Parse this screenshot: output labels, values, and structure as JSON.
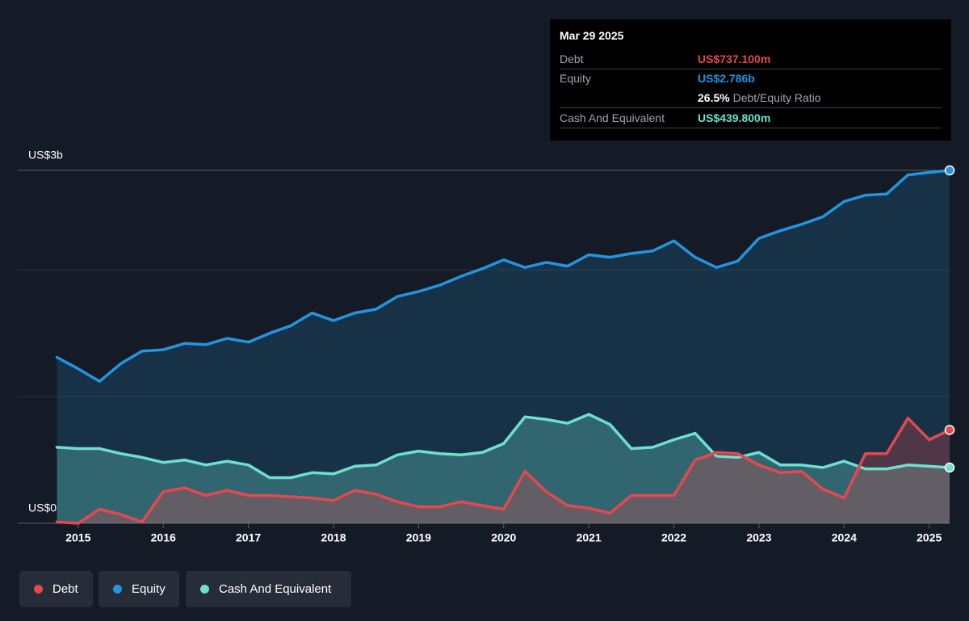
{
  "chart_data": {
    "type": "area-line",
    "x": [
      2014.75,
      2015.0,
      2015.25,
      2015.5,
      2015.75,
      2016.0,
      2016.25,
      2016.5,
      2016.75,
      2017.0,
      2017.25,
      2017.5,
      2017.75,
      2018.0,
      2018.25,
      2018.5,
      2018.75,
      2019.0,
      2019.25,
      2019.5,
      2019.75,
      2020.0,
      2020.25,
      2020.5,
      2020.75,
      2021.0,
      2021.25,
      2021.5,
      2021.75,
      2022.0,
      2022.25,
      2022.5,
      2022.75,
      2023.0,
      2023.25,
      2023.5,
      2023.75,
      2024.0,
      2024.25,
      2024.5,
      2024.75,
      2025.0,
      2025.24
    ],
    "series": [
      {
        "name": "Debt",
        "color": "#e5484d",
        "values": [
          0.01,
          0.0,
          0.11,
          0.07,
          0.01,
          0.25,
          0.28,
          0.22,
          0.26,
          0.22,
          0.22,
          0.21,
          0.2,
          0.18,
          0.26,
          0.23,
          0.17,
          0.13,
          0.13,
          0.17,
          0.14,
          0.11,
          0.41,
          0.25,
          0.14,
          0.12,
          0.08,
          0.22,
          0.22,
          0.22,
          0.5,
          0.56,
          0.55,
          0.46,
          0.4,
          0.41,
          0.27,
          0.2,
          0.55,
          0.55,
          0.83,
          0.66,
          0.7371
        ]
      },
      {
        "name": "Equity",
        "color": "#2394df",
        "values": [
          1.31,
          1.22,
          1.12,
          1.26,
          1.36,
          1.37,
          1.42,
          1.41,
          1.46,
          1.43,
          1.5,
          1.56,
          1.66,
          1.6,
          1.66,
          1.69,
          1.79,
          1.83,
          1.88,
          1.95,
          2.01,
          2.08,
          2.02,
          2.06,
          2.03,
          2.12,
          2.1,
          2.13,
          2.15,
          2.23,
          2.1,
          2.02,
          2.07,
          2.25,
          2.31,
          2.36,
          2.42,
          2.54,
          2.59,
          2.6,
          2.75,
          2.77,
          2.786
        ]
      },
      {
        "name": "Cash And Equivalent",
        "color": "#6de0d0",
        "values": [
          0.6,
          0.59,
          0.59,
          0.55,
          0.52,
          0.48,
          0.5,
          0.46,
          0.49,
          0.46,
          0.36,
          0.36,
          0.4,
          0.39,
          0.45,
          0.46,
          0.54,
          0.57,
          0.55,
          0.54,
          0.56,
          0.63,
          0.84,
          0.82,
          0.79,
          0.86,
          0.78,
          0.59,
          0.6,
          0.66,
          0.71,
          0.53,
          0.52,
          0.56,
          0.46,
          0.46,
          0.44,
          0.49,
          0.43,
          0.43,
          0.46,
          0.45,
          0.4398
        ]
      }
    ],
    "xlim": [
      2014.29,
      2025.24
    ],
    "xticks": [
      2015,
      2016,
      2017,
      2018,
      2019,
      2020,
      2021,
      2022,
      2023,
      2024,
      2025
    ],
    "ylim": [
      0,
      2.786
    ],
    "yticks": [
      {
        "value": 0,
        "label": "US$0"
      },
      {
        "value": 1,
        "label": null
      },
      {
        "value": 2,
        "label": null
      },
      {
        "value": 2.786,
        "label": "US$3b"
      }
    ],
    "grid": true,
    "tooltip": {
      "date": "Mar 29 2025",
      "debt_label": "Debt",
      "debt_value": "US$737.100m",
      "equity_label": "Equity",
      "equity_value": "US$2.786b",
      "ratio_value": "26.5%",
      "ratio_label": "Debt/Equity Ratio",
      "cash_label": "Cash And Equivalent",
      "cash_value": "US$439.800m"
    }
  }
}
